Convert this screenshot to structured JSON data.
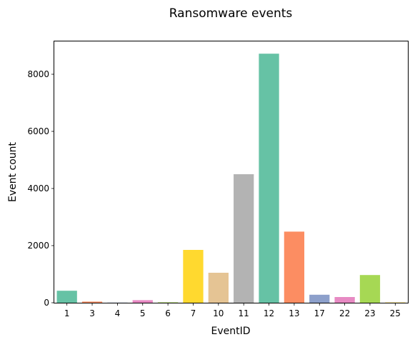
{
  "chart_data": {
    "type": "bar",
    "title": "Ransomware events",
    "xlabel": "EventID",
    "ylabel": "Event count",
    "categories": [
      "1",
      "3",
      "4",
      "5",
      "6",
      "7",
      "10",
      "11",
      "12",
      "13",
      "17",
      "22",
      "23",
      "25"
    ],
    "values": [
      420,
      40,
      5,
      90,
      15,
      1850,
      1050,
      4500,
      8720,
      2490,
      280,
      200,
      970,
      10
    ],
    "colors": [
      "#66c2a5",
      "#fc8d62",
      "#8da0cb",
      "#e78ac3",
      "#a6d854",
      "#ffd92f",
      "#e5c494",
      "#b3b3b3",
      "#66c2a5",
      "#fc8d62",
      "#8da0cb",
      "#e78ac3",
      "#a6d854",
      "#ffd92f"
    ],
    "yticks": [
      0,
      2000,
      4000,
      6000,
      8000
    ],
    "ylim": [
      0,
      9150
    ],
    "grid": false,
    "legend": "none"
  }
}
